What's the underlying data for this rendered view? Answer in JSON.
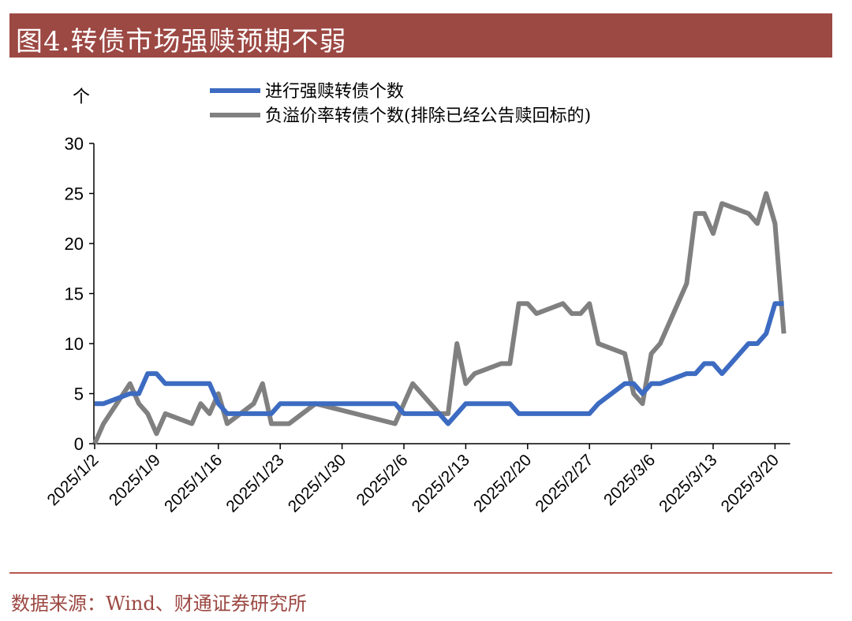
{
  "title": "图4.转债市场强赎预期不弱",
  "source": "数据来源：Wind、财通证券研究所",
  "chart_data": {
    "type": "line",
    "title": "",
    "ylabel": "个",
    "xlabel": "",
    "ylim": [
      0,
      30
    ],
    "yticks": [
      0,
      5,
      10,
      15,
      20,
      25,
      30
    ],
    "xlim": [
      "2025-01-02",
      "2025-03-21"
    ],
    "xticks": [
      "2025/1/2",
      "2025/1/9",
      "2025/1/16",
      "2025/1/23",
      "2025/1/30",
      "2025/2/6",
      "2025/2/13",
      "2025/2/20",
      "2025/2/27",
      "2025/3/6",
      "2025/3/13",
      "2025/3/20"
    ],
    "grid": false,
    "legend_placement": "top",
    "x": [
      "2025-01-02",
      "2025-01-03",
      "2025-01-06",
      "2025-01-07",
      "2025-01-08",
      "2025-01-09",
      "2025-01-10",
      "2025-01-13",
      "2025-01-14",
      "2025-01-15",
      "2025-01-16",
      "2025-01-17",
      "2025-01-20",
      "2025-01-21",
      "2025-01-22",
      "2025-01-23",
      "2025-01-24",
      "2025-01-27",
      "2025-02-05",
      "2025-02-06",
      "2025-02-07",
      "2025-02-10",
      "2025-02-11",
      "2025-02-12",
      "2025-02-13",
      "2025-02-14",
      "2025-02-17",
      "2025-02-18",
      "2025-02-19",
      "2025-02-20",
      "2025-02-21",
      "2025-02-24",
      "2025-02-25",
      "2025-02-26",
      "2025-02-27",
      "2025-02-28",
      "2025-03-03",
      "2025-03-04",
      "2025-03-05",
      "2025-03-06",
      "2025-03-07",
      "2025-03-10",
      "2025-03-11",
      "2025-03-12",
      "2025-03-13",
      "2025-03-14",
      "2025-03-17",
      "2025-03-18",
      "2025-03-19",
      "2025-03-20",
      "2025-03-21"
    ],
    "series": [
      {
        "name": "进行强赎转债个数",
        "color": "#3c6bc1",
        "values": [
          4,
          4,
          5,
          5,
          7,
          7,
          6,
          6,
          6,
          6,
          4,
          3,
          3,
          3,
          3,
          4,
          4,
          4,
          4,
          3,
          3,
          3,
          2,
          3,
          4,
          4,
          4,
          4,
          3,
          3,
          3,
          3,
          3,
          3,
          3,
          4,
          6,
          6,
          5,
          6,
          6,
          7,
          7,
          8,
          8,
          7,
          10,
          10,
          11,
          14,
          14
        ]
      },
      {
        "name": "负溢价率转债个数(排除已经公告赎回标的)",
        "color": "#808080",
        "values": [
          0,
          2,
          6,
          4,
          3,
          1,
          3,
          2,
          4,
          3,
          5,
          2,
          4,
          6,
          2,
          2,
          2,
          4,
          2,
          4,
          6,
          3,
          3,
          10,
          6,
          7,
          8,
          8,
          14,
          14,
          13,
          14,
          13,
          13,
          14,
          10,
          9,
          5,
          4,
          9,
          10,
          16,
          23,
          23,
          21,
          24,
          23,
          22,
          25,
          22,
          11
        ]
      }
    ]
  }
}
